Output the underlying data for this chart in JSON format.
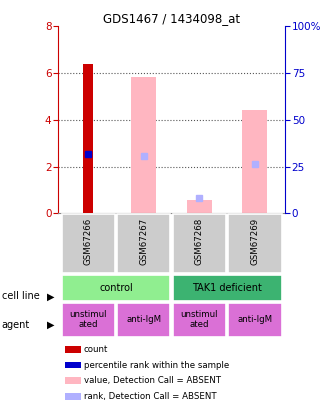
{
  "title": "GDS1467 / 1434098_at",
  "samples": [
    "GSM67266",
    "GSM67267",
    "GSM67268",
    "GSM67269"
  ],
  "ylim_left": [
    0,
    8
  ],
  "ylim_right": [
    0,
    100
  ],
  "yticks_left": [
    0,
    2,
    4,
    6,
    8
  ],
  "yticks_right": [
    0,
    25,
    50,
    75,
    100
  ],
  "ytick_labels_right": [
    "0",
    "25",
    "50",
    "75",
    "100%"
  ],
  "red_bars": [
    6.4,
    0,
    0,
    0
  ],
  "blue_markers": [
    2.55,
    0,
    0,
    0
  ],
  "pink_bars": [
    0,
    5.85,
    0.55,
    4.4
  ],
  "lavender_markers": [
    0,
    2.45,
    0.65,
    2.1
  ],
  "bar_positions": [
    0,
    1,
    2,
    3
  ],
  "cell_line_labels": [
    "control",
    "TAK1 deficient"
  ],
  "cell_line_colors": [
    "#90ee90",
    "#3cb371"
  ],
  "agent_labels": [
    "unstimul\nated",
    "anti-IgM",
    "unstimul\nated",
    "anti-IgM"
  ],
  "agent_color": "#da70d6",
  "sample_box_color": "#cccccc",
  "legend_items": [
    {
      "color": "#cc0000",
      "label": "count"
    },
    {
      "color": "#0000cc",
      "label": "percentile rank within the sample"
    },
    {
      "color": "#ffb6c1",
      "label": "value, Detection Call = ABSENT"
    },
    {
      "color": "#b0b0ff",
      "label": "rank, Detection Call = ABSENT"
    }
  ],
  "axis_left_color": "#cc0000",
  "axis_right_color": "#0000cc",
  "background_color": "#ffffff"
}
